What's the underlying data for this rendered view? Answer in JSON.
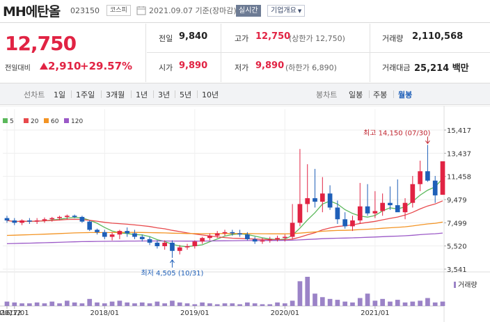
{
  "header": {
    "company_name": "MH에탄올",
    "code": "023150",
    "market": "코스피",
    "date": "2021.09.07 기준(장마감)",
    "realtime_label": "실시간",
    "company_info_label": "기업개요"
  },
  "price": {
    "current": "12,750",
    "change_label": "전일대비",
    "change": "2,910",
    "change_pct": "+29.57%",
    "up_color": "#e12343",
    "down_color": "#1e5fb8"
  },
  "quote": {
    "prev_close_label": "전일",
    "prev_close": "9,840",
    "high_label": "고가",
    "high": "12,750",
    "upper_limit": "(상한가 12,750)",
    "volume_label": "거래량",
    "volume": "2,110,568",
    "open_label": "시가",
    "open": "9,890",
    "low_label": "저가",
    "low": "9,890",
    "lower_limit": "(하한가 6,890)",
    "amount_label": "거래대금",
    "amount": "25,214 백만"
  },
  "period_bar": {
    "line_label": "선차트",
    "line_periods": [
      "1일",
      "1주일",
      "3개월",
      "1년",
      "3년",
      "5년",
      "10년"
    ],
    "candle_label": "봉차트",
    "candle_periods": [
      "일봉",
      "주봉",
      "월봉"
    ],
    "active_candle": "월봉"
  },
  "chart_data": {
    "type": "candlestick",
    "legend": [
      {
        "label": "5",
        "color": "#5bb85b"
      },
      {
        "label": "20",
        "color": "#e8494c"
      },
      {
        "label": "60",
        "color": "#f39424"
      },
      {
        "label": "120",
        "color": "#9b59c7"
      }
    ],
    "y_ticks": [
      "15,417",
      "13,437",
      "11,458",
      "9,479",
      "7,499",
      "5,520",
      "3,541"
    ],
    "ylim": [
      3541,
      15417
    ],
    "x_ticks": [
      {
        "label": "2016/12",
        "index": 0
      },
      {
        "label": "2017/01",
        "index": 1
      },
      {
        "label": "2018/01",
        "index": 13
      },
      {
        "label": "2019/01",
        "index": 25
      },
      {
        "label": "2020/01",
        "index": 37
      },
      {
        "label": "2021/01",
        "index": 49
      }
    ],
    "max_annotation": "최고 14,150 (07/30)",
    "min_annotation": "최저 4,505 (10/31)",
    "max_index": 56,
    "min_index": 22,
    "volume_label": "거래량",
    "candles": [
      [
        7900,
        8100,
        7500,
        7700
      ],
      [
        7700,
        7900,
        7300,
        7500
      ],
      [
        7500,
        7800,
        7300,
        7700
      ],
      [
        7700,
        7900,
        7400,
        7600
      ],
      [
        7600,
        7900,
        7400,
        7700
      ],
      [
        7700,
        7950,
        7500,
        7800
      ],
      [
        7800,
        8000,
        7600,
        7900
      ],
      [
        7900,
        8100,
        7700,
        8000
      ],
      [
        8000,
        8200,
        7800,
        8100
      ],
      [
        8100,
        8200,
        7900,
        8000
      ],
      [
        8000,
        8100,
        7500,
        7600
      ],
      [
        7600,
        7700,
        6800,
        6900
      ],
      [
        6900,
        7000,
        6500,
        6700
      ],
      [
        6700,
        6900,
        6100,
        6300
      ],
      [
        6300,
        6700,
        6000,
        6500
      ],
      [
        6500,
        6900,
        6100,
        6800
      ],
      [
        6800,
        7100,
        6300,
        6600
      ],
      [
        6600,
        6900,
        6100,
        6300
      ],
      [
        6300,
        6500,
        5900,
        6100
      ],
      [
        6100,
        6300,
        5600,
        5800
      ],
      [
        5800,
        6000,
        5300,
        5500
      ],
      [
        5500,
        6000,
        5200,
        5800
      ],
      [
        5800,
        6000,
        4505,
        5100
      ],
      [
        5100,
        5600,
        4800,
        5400
      ],
      [
        5400,
        5700,
        5200,
        5500
      ],
      [
        5500,
        6000,
        5300,
        5900
      ],
      [
        5900,
        6300,
        5700,
        6200
      ],
      [
        6200,
        6600,
        6000,
        6400
      ],
      [
        6400,
        6800,
        6200,
        6600
      ],
      [
        6600,
        6900,
        6400,
        6700
      ],
      [
        6700,
        6900,
        6400,
        6600
      ],
      [
        6600,
        6900,
        6300,
        6500
      ],
      [
        6500,
        6700,
        6000,
        6100
      ],
      [
        6100,
        6300,
        5700,
        5900
      ],
      [
        5900,
        6200,
        5700,
        6000
      ],
      [
        6000,
        6300,
        5800,
        6100
      ],
      [
        6100,
        6400,
        5900,
        6200
      ],
      [
        6200,
        6500,
        5900,
        6300
      ],
      [
        6300,
        9100,
        6100,
        7500
      ],
      [
        7500,
        13800,
        7200,
        9100
      ],
      [
        9100,
        12500,
        8400,
        9600
      ],
      [
        9600,
        12100,
        8800,
        9300
      ],
      [
        9300,
        11400,
        8400,
        10000
      ],
      [
        10000,
        10700,
        8600,
        8800
      ],
      [
        8800,
        9400,
        7400,
        7800
      ],
      [
        7800,
        8400,
        7000,
        7200
      ],
      [
        7200,
        8100,
        6800,
        7700
      ],
      [
        7700,
        10900,
        7400,
        8900
      ],
      [
        8900,
        10800,
        8100,
        8300
      ],
      [
        8300,
        10200,
        7900,
        8500
      ],
      [
        8500,
        10000,
        8100,
        9200
      ],
      [
        9200,
        10600,
        8600,
        9000
      ],
      [
        9000,
        11200,
        8500,
        8400
      ],
      [
        8400,
        9600,
        7800,
        9200
      ],
      [
        9200,
        11500,
        8800,
        10800
      ],
      [
        10800,
        12800,
        10200,
        11900
      ],
      [
        11900,
        14150,
        11000,
        11100
      ],
      [
        11100,
        11500,
        9200,
        9840
      ],
      [
        9890,
        12750,
        9890,
        12750
      ]
    ],
    "volumes": [
      5,
      4,
      3,
      3,
      4,
      3,
      5,
      3,
      6,
      4,
      3,
      8,
      4,
      3,
      5,
      6,
      4,
      3,
      4,
      3,
      5,
      3,
      6,
      4,
      3,
      2,
      4,
      3,
      2,
      3,
      3,
      2,
      4,
      3,
      2,
      2,
      4,
      3,
      6,
      28,
      33,
      14,
      10,
      8,
      7,
      5,
      4,
      9,
      14,
      6,
      8,
      5,
      7,
      4,
      5,
      6,
      9,
      4,
      5
    ]
  }
}
